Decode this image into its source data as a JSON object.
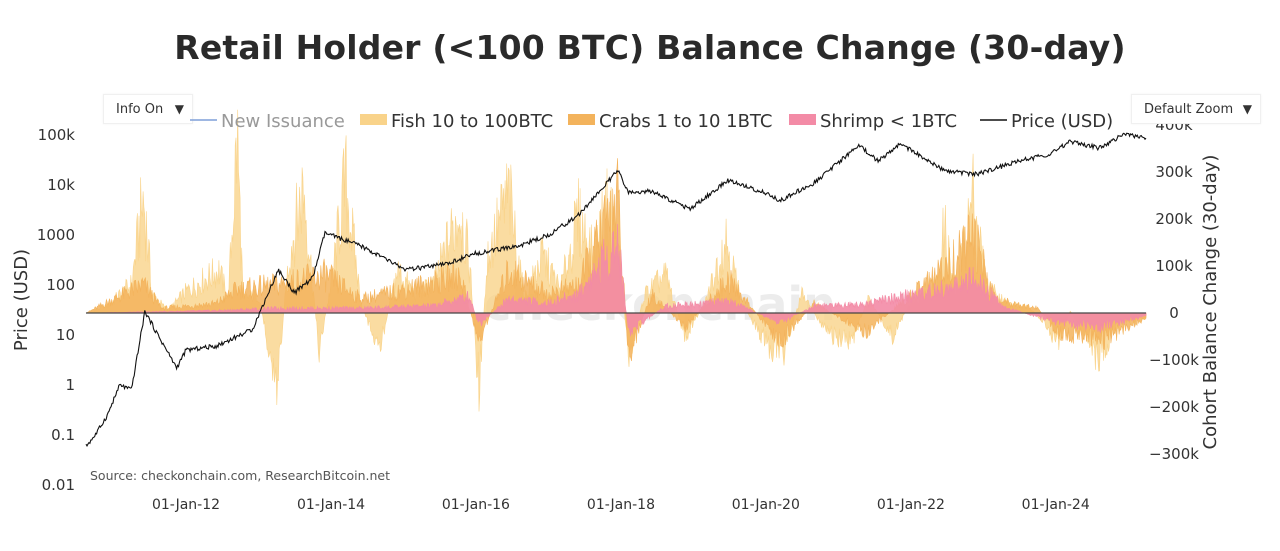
{
  "title": "Retail Holder (<100 BTC) Balance Change (30-day)",
  "controls": {
    "info_dropdown": "Info On",
    "zoom_dropdown": "Default Zoom"
  },
  "source": "Source: checkonchain.com, ResearchBitcoin.net",
  "watermark": "checkonchain",
  "colors": {
    "new_issuance": "#7f9fd8",
    "fish": "#f9d38a",
    "crabs": "#f3b35c",
    "shrimp": "#f38ba6",
    "price": "#111111"
  },
  "legend": [
    {
      "key": "new_issuance",
      "label": "New Issuance",
      "dimmed": true
    },
    {
      "key": "fish",
      "label": "Fish 10 to 100BTC"
    },
    {
      "key": "crabs",
      "label": "Crabs 1 to 10 1BTC"
    },
    {
      "key": "shrimp",
      "label": "Shrimp < 1BTC"
    },
    {
      "key": "price",
      "label": "Price (USD)"
    }
  ],
  "chart_data": {
    "type": "area",
    "x_axis": {
      "ticks": [
        "01-Jan-12",
        "01-Jan-14",
        "01-Jan-16",
        "01-Jan-18",
        "01-Jan-20",
        "01-Jan-22",
        "01-Jan-24"
      ],
      "range": [
        "2010-08-15",
        "2025-03-31"
      ]
    },
    "y_left": {
      "label": "Price (USD)",
      "scale": "log",
      "range": [
        0.01,
        100000
      ],
      "ticks": [
        "0.01",
        "0.1",
        "1",
        "10",
        "100",
        "1000",
        "10k",
        "100k"
      ]
    },
    "y_right": {
      "label": "Cohort Balance Change (30-day)",
      "scale": "linear",
      "range": [
        -300000,
        400000
      ],
      "ticks": [
        "−300k",
        "−200k",
        "−100k",
        "0",
        "100k",
        "200k",
        "300k",
        "400k"
      ]
    },
    "series": [
      {
        "name": "Price (USD)",
        "key": "price",
        "axis": "left",
        "kind": "line",
        "points": [
          [
            "2010-08-15",
            0.06
          ],
          [
            "2010-10-01",
            0.1
          ],
          [
            "2010-12-01",
            0.25
          ],
          [
            "2011-02-01",
            1.0
          ],
          [
            "2011-04-01",
            0.8
          ],
          [
            "2011-06-08",
            30
          ],
          [
            "2011-08-01",
            12
          ],
          [
            "2011-11-15",
            2.2
          ],
          [
            "2012-01-01",
            5
          ],
          [
            "2012-06-01",
            6
          ],
          [
            "2012-12-01",
            13
          ],
          [
            "2013-04-10",
            200
          ],
          [
            "2013-07-01",
            70
          ],
          [
            "2013-10-01",
            140
          ],
          [
            "2013-12-01",
            1100
          ],
          [
            "2014-06-01",
            600
          ],
          [
            "2015-01-15",
            200
          ],
          [
            "2015-08-01",
            260
          ],
          [
            "2016-01-01",
            430
          ],
          [
            "2016-08-01",
            600
          ],
          [
            "2017-01-01",
            1000
          ],
          [
            "2017-06-01",
            2500
          ],
          [
            "2017-12-17",
            19500
          ],
          [
            "2018-02-06",
            7000
          ],
          [
            "2018-06-01",
            7500
          ],
          [
            "2018-12-15",
            3300
          ],
          [
            "2019-06-26",
            12500
          ],
          [
            "2019-12-15",
            7200
          ],
          [
            "2020-03-13",
            4900
          ],
          [
            "2020-09-01",
            11000
          ],
          [
            "2021-04-14",
            63000
          ],
          [
            "2021-07-20",
            30000
          ],
          [
            "2021-11-10",
            68000
          ],
          [
            "2022-06-18",
            19000
          ],
          [
            "2022-12-01",
            16500
          ],
          [
            "2023-07-01",
            30000
          ],
          [
            "2023-12-01",
            42000
          ],
          [
            "2024-03-14",
            73000
          ],
          [
            "2024-08-05",
            55000
          ],
          [
            "2024-12-17",
            106000
          ],
          [
            "2025-03-31",
            84000
          ]
        ]
      },
      {
        "name": "Fish 10 to 100BTC",
        "key": "fish",
        "axis": "right",
        "kind": "area",
        "points": [
          [
            "2010-08-15",
            0
          ],
          [
            "2010-12-01",
            15000
          ],
          [
            "2011-04-01",
            60000
          ],
          [
            "2011-06-01",
            245000
          ],
          [
            "2011-07-15",
            40000
          ],
          [
            "2011-10-01",
            5000
          ],
          [
            "2012-01-01",
            45000
          ],
          [
            "2012-04-01",
            70000
          ],
          [
            "2012-06-15",
            90000
          ],
          [
            "2012-08-01",
            30000
          ],
          [
            "2012-09-15",
            370000
          ],
          [
            "2012-10-15",
            30000
          ],
          [
            "2013-01-01",
            40000
          ],
          [
            "2013-04-01",
            -160000
          ],
          [
            "2013-06-01",
            110000
          ],
          [
            "2013-08-15",
            270000
          ],
          [
            "2013-11-01",
            -80000
          ],
          [
            "2014-01-01",
            60000
          ],
          [
            "2014-03-15",
            280000
          ],
          [
            "2014-06-01",
            20000
          ],
          [
            "2014-09-01",
            -80000
          ],
          [
            "2014-12-01",
            90000
          ],
          [
            "2015-03-01",
            40000
          ],
          [
            "2015-06-01",
            60000
          ],
          [
            "2015-08-15",
            150000
          ],
          [
            "2015-10-15",
            220000
          ],
          [
            "2015-12-01",
            100000
          ],
          [
            "2016-01-15",
            -160000
          ],
          [
            "2016-03-01",
            120000
          ],
          [
            "2016-06-15",
            250000
          ],
          [
            "2016-09-01",
            30000
          ],
          [
            "2016-12-01",
            120000
          ],
          [
            "2017-03-01",
            50000
          ],
          [
            "2017-06-01",
            200000
          ],
          [
            "2017-08-15",
            120000
          ],
          [
            "2017-11-01",
            230000
          ],
          [
            "2017-12-15",
            140000
          ],
          [
            "2018-02-10",
            -90000
          ],
          [
            "2018-05-01",
            40000
          ],
          [
            "2018-08-15",
            80000
          ],
          [
            "2018-11-20",
            -50000
          ],
          [
            "2019-03-01",
            20000
          ],
          [
            "2019-06-15",
            160000
          ],
          [
            "2019-09-01",
            20000
          ],
          [
            "2020-01-15",
            -70000
          ],
          [
            "2020-04-01",
            -80000
          ],
          [
            "2020-07-01",
            40000
          ],
          [
            "2020-11-01",
            -40000
          ],
          [
            "2021-03-01",
            -70000
          ],
          [
            "2021-06-01",
            30000
          ],
          [
            "2021-10-01",
            -50000
          ],
          [
            "2022-01-01",
            25000
          ],
          [
            "2022-05-15",
            60000
          ],
          [
            "2022-06-18",
            180000
          ],
          [
            "2022-08-15",
            30000
          ],
          [
            "2022-11-10",
            250000
          ],
          [
            "2023-01-15",
            60000
          ],
          [
            "2023-05-01",
            20000
          ],
          [
            "2023-09-01",
            10000
          ],
          [
            "2024-01-15",
            -60000
          ],
          [
            "2024-03-15",
            5000
          ],
          [
            "2024-08-05",
            -100000
          ],
          [
            "2024-11-15",
            -20000
          ],
          [
            "2025-03-31",
            -10000
          ]
        ]
      },
      {
        "name": "Crabs 1 to 10 1BTC",
        "key": "crabs",
        "axis": "right",
        "kind": "area",
        "points": [
          [
            "2010-08-15",
            0
          ],
          [
            "2011-06-01",
            60000
          ],
          [
            "2011-09-01",
            10000
          ],
          [
            "2012-06-01",
            20000
          ],
          [
            "2012-09-15",
            50000
          ],
          [
            "2013-04-10",
            60000
          ],
          [
            "2013-12-01",
            80000
          ],
          [
            "2014-06-01",
            30000
          ],
          [
            "2015-01-15",
            50000
          ],
          [
            "2015-10-15",
            80000
          ],
          [
            "2016-01-15",
            -60000
          ],
          [
            "2016-06-15",
            90000
          ],
          [
            "2017-01-01",
            40000
          ],
          [
            "2017-06-01",
            60000
          ],
          [
            "2017-12-15",
            240000
          ],
          [
            "2018-02-10",
            -100000
          ],
          [
            "2018-06-01",
            40000
          ],
          [
            "2018-11-20",
            -30000
          ],
          [
            "2019-06-26",
            70000
          ],
          [
            "2020-03-13",
            -60000
          ],
          [
            "2020-09-01",
            20000
          ],
          [
            "2021-05-19",
            -40000
          ],
          [
            "2021-11-10",
            20000
          ],
          [
            "2022-06-18",
            90000
          ],
          [
            "2022-11-10",
            160000
          ],
          [
            "2023-03-01",
            30000
          ],
          [
            "2023-10-01",
            10000
          ],
          [
            "2024-01-15",
            -40000
          ],
          [
            "2024-08-05",
            -60000
          ],
          [
            "2025-03-31",
            -10000
          ]
        ]
      },
      {
        "name": "Shrimp < 1BTC",
        "key": "shrimp",
        "axis": "right",
        "kind": "area",
        "points": [
          [
            "2010-08-15",
            0
          ],
          [
            "2012-06-01",
            5000
          ],
          [
            "2013-04-10",
            10000
          ],
          [
            "2014-06-01",
            10000
          ],
          [
            "2015-06-01",
            15000
          ],
          [
            "2015-12-01",
            35000
          ],
          [
            "2016-01-15",
            -25000
          ],
          [
            "2016-06-15",
            30000
          ],
          [
            "2017-01-01",
            20000
          ],
          [
            "2017-06-01",
            40000
          ],
          [
            "2017-12-15",
            150000
          ],
          [
            "2018-02-10",
            -40000
          ],
          [
            "2018-08-15",
            15000
          ],
          [
            "2019-06-26",
            25000
          ],
          [
            "2020-03-13",
            -20000
          ],
          [
            "2020-09-01",
            15000
          ],
          [
            "2021-05-19",
            20000
          ],
          [
            "2022-06-18",
            50000
          ],
          [
            "2022-11-10",
            70000
          ],
          [
            "2023-05-01",
            10000
          ],
          [
            "2024-01-15",
            -20000
          ],
          [
            "2024-08-05",
            -30000
          ],
          [
            "2025-03-31",
            -5000
          ]
        ]
      }
    ],
    "grid": false,
    "legend_position": "top"
  }
}
